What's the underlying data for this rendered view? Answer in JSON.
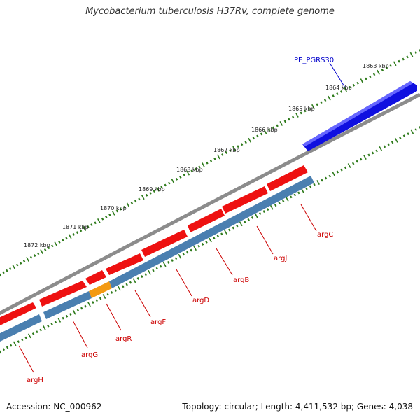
{
  "title": "Mycobacterium tuberculosis H37Rv, complete genome",
  "footer": {
    "accession": "Accession: NC_000962",
    "stats": "Topology: circular; Length: 4,411,532 bp; Genes: 4,038"
  },
  "colors": {
    "backbone": "#8c8c8c",
    "forward_gene": "#ee1111",
    "reverse_gene": "#4a7fb0",
    "regulator_gene": "#f39a12",
    "pe_pgrs_gene": "#1010e0",
    "tick": "#2d7a1a",
    "gene_label": "#cc0000",
    "pe_label": "#0000cc"
  },
  "tick_labels": [
    {
      "kbp": 1863,
      "label": "1863 kbp"
    },
    {
      "kbp": 1864,
      "label": "1864 kbp"
    },
    {
      "kbp": 1865,
      "label": "1865 kbp"
    },
    {
      "kbp": 1866,
      "label": "1866 kbp"
    },
    {
      "kbp": 1867,
      "label": "1867 kbp"
    },
    {
      "kbp": 1868,
      "label": "1868 kbp"
    },
    {
      "kbp": 1869,
      "label": "1869 kbp"
    },
    {
      "kbp": 1870,
      "label": "1870 kbp"
    },
    {
      "kbp": 1871,
      "label": "1871 kbp"
    },
    {
      "kbp": 1872,
      "label": "1872 kbp"
    }
  ],
  "genes": [
    {
      "name": "PE_PGRS30",
      "strand": "pe"
    },
    {
      "name": "argC",
      "strand": "reverse"
    },
    {
      "name": "argJ",
      "strand": "reverse"
    },
    {
      "name": "argB",
      "strand": "reverse"
    },
    {
      "name": "argD",
      "strand": "reverse"
    },
    {
      "name": "argF",
      "strand": "reverse"
    },
    {
      "name": "argR",
      "strand": "regulator"
    },
    {
      "name": "argG",
      "strand": "reverse"
    },
    {
      "name": "argH",
      "strand": "reverse"
    }
  ]
}
